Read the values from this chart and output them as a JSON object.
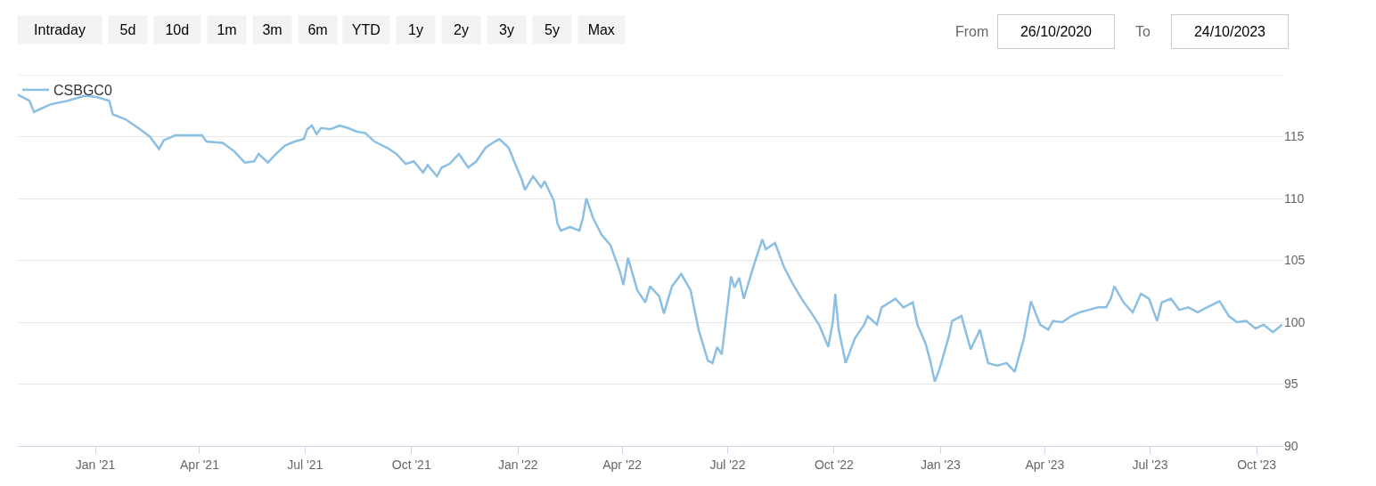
{
  "chart_data": {
    "type": "line",
    "annotations": [
      "Intraday",
      "5d",
      "10d",
      "1m",
      "3m",
      "6m",
      "YTD",
      "1y",
      "2y",
      "3y",
      "5y",
      "Max",
      "From",
      "26/10/2020",
      "To",
      "24/10/2023"
    ],
    "x": [
      "2020-10-26",
      "2020-11-05",
      "2020-11-09",
      "2020-11-23",
      "2020-12-08",
      "2020-12-23",
      "2021-01-02",
      "2021-01-13",
      "2021-01-16",
      "2021-01-27",
      "2021-02-07",
      "2021-02-17",
      "2021-02-25",
      "2021-03-01",
      "2021-03-11",
      "2021-03-21",
      "2021-04-03",
      "2021-04-07",
      "2021-04-21",
      "2021-05-01",
      "2021-05-10",
      "2021-05-18",
      "2021-05-22",
      "2021-05-30",
      "2021-06-06",
      "2021-06-14",
      "2021-06-22",
      "2021-06-30",
      "2021-07-03",
      "2021-07-07",
      "2021-07-11",
      "2021-07-15",
      "2021-07-23",
      "2021-07-31",
      "2021-08-07",
      "2021-08-15",
      "2021-08-22",
      "2021-08-30",
      "2021-09-10",
      "2021-09-18",
      "2021-09-26",
      "2021-10-03",
      "2021-10-11",
      "2021-10-15",
      "2021-10-23",
      "2021-10-27",
      "2021-11-03",
      "2021-11-11",
      "2021-11-19",
      "2021-11-26",
      "2021-12-04",
      "2021-12-12",
      "2021-12-16",
      "2021-12-24",
      "2021-12-30",
      "2022-01-04",
      "2022-01-07",
      "2022-01-14",
      "2022-01-21",
      "2022-01-24",
      "2022-02-01",
      "2022-02-04",
      "2022-02-07",
      "2022-02-15",
      "2022-02-23",
      "2022-02-26",
      "2022-03-01",
      "2022-03-07",
      "2022-03-14",
      "2022-03-22",
      "2022-03-30",
      "2022-04-02",
      "2022-04-06",
      "2022-04-14",
      "2022-04-21",
      "2022-04-25",
      "2022-05-03",
      "2022-05-07",
      "2022-05-14",
      "2022-05-22",
      "2022-05-30",
      "2022-06-06",
      "2022-06-14",
      "2022-06-18",
      "2022-06-22",
      "2022-06-26",
      "2022-07-04",
      "2022-07-07",
      "2022-07-11",
      "2022-07-15",
      "2022-07-23",
      "2022-07-31",
      "2022-08-03",
      "2022-08-11",
      "2022-08-19",
      "2022-08-27",
      "2022-09-03",
      "2022-09-11",
      "2022-09-18",
      "2022-09-26",
      "2022-09-30",
      "2022-10-02",
      "2022-10-05",
      "2022-10-11",
      "2022-10-19",
      "2022-10-27",
      "2022-10-30",
      "2022-11-07",
      "2022-11-11",
      "2022-11-23",
      "2022-11-30",
      "2022-12-08",
      "2022-12-12",
      "2022-12-19",
      "2022-12-23",
      "2022-12-27",
      "2022-12-31",
      "2023-01-08",
      "2023-01-11",
      "2023-01-19",
      "2023-01-27",
      "2023-02-04",
      "2023-02-11",
      "2023-02-19",
      "2023-02-27",
      "2023-03-06",
      "2023-03-14",
      "2023-03-20",
      "2023-03-28",
      "2023-04-04",
      "2023-04-08",
      "2023-04-16",
      "2023-04-24",
      "2023-05-01",
      "2023-05-09",
      "2023-05-17",
      "2023-05-24",
      "2023-05-28",
      "2023-05-31",
      "2023-06-08",
      "2023-06-16",
      "2023-06-23",
      "2023-06-30",
      "2023-07-07",
      "2023-07-11",
      "2023-07-19",
      "2023-07-26",
      "2023-08-03",
      "2023-08-11",
      "2023-08-19",
      "2023-08-30",
      "2023-09-07",
      "2023-09-14",
      "2023-09-22",
      "2023-09-30",
      "2023-10-07",
      "2023-10-15",
      "2023-10-23"
    ],
    "series": [
      {
        "name": "CSBGC0",
        "color": "#8bbfe3",
        "values": [
          118.4,
          117.9,
          117.0,
          117.6,
          117.9,
          118.3,
          118.2,
          117.9,
          116.8,
          116.4,
          115.7,
          115.0,
          114.0,
          114.7,
          115.1,
          115.1,
          115.1,
          114.6,
          114.5,
          113.8,
          112.9,
          113.0,
          113.6,
          112.9,
          113.6,
          114.3,
          114.6,
          114.8,
          115.6,
          115.9,
          115.2,
          115.7,
          115.6,
          115.9,
          115.7,
          115.4,
          115.3,
          114.6,
          114.1,
          113.6,
          112.8,
          113.0,
          112.1,
          112.7,
          111.8,
          112.5,
          112.8,
          113.6,
          112.5,
          113.0,
          114.1,
          114.6,
          114.8,
          114.1,
          112.7,
          111.6,
          110.7,
          111.8,
          110.9,
          111.4,
          109.8,
          108.0,
          107.4,
          107.7,
          107.4,
          108.4,
          110.0,
          108.4,
          107.1,
          106.2,
          104.1,
          103.0,
          105.2,
          102.6,
          101.6,
          102.9,
          102.1,
          100.7,
          102.9,
          103.9,
          102.6,
          99.4,
          96.9,
          96.7,
          98.0,
          97.4,
          103.7,
          102.8,
          103.6,
          101.9,
          104.4,
          106.7,
          105.9,
          106.4,
          104.4,
          103.0,
          101.9,
          100.8,
          99.8,
          98.0,
          100.1,
          102.3,
          99.4,
          96.7,
          98.7,
          99.8,
          100.5,
          99.8,
          101.2,
          101.9,
          101.2,
          101.6,
          99.8,
          98.3,
          96.9,
          95.2,
          96.2,
          98.8,
          100.1,
          100.5,
          97.8,
          99.4,
          96.7,
          96.5,
          96.7,
          96.0,
          98.7,
          101.7,
          99.8,
          99.4,
          100.1,
          100.0,
          100.5,
          100.8,
          101.0,
          101.2,
          101.2,
          101.9,
          102.9,
          101.6,
          100.8,
          102.3,
          101.9,
          100.1,
          101.6,
          101.9,
          101.0,
          101.2,
          100.8,
          101.2,
          101.7,
          100.5,
          100.0,
          100.1,
          99.5,
          99.8,
          99.2,
          99.8
        ]
      }
    ],
    "xlim": [
      "2020-10-26",
      "2023-10-24"
    ],
    "xticks": [
      {
        "value": "2021-01-01",
        "label": "Jan '21"
      },
      {
        "value": "2021-04-01",
        "label": "Apr '21"
      },
      {
        "value": "2021-07-01",
        "label": "Jul '21"
      },
      {
        "value": "2021-10-01",
        "label": "Oct '21"
      },
      {
        "value": "2022-01-01",
        "label": "Jan '22"
      },
      {
        "value": "2022-04-01",
        "label": "Apr '22"
      },
      {
        "value": "2022-07-01",
        "label": "Jul '22"
      },
      {
        "value": "2022-10-01",
        "label": "Oct '22"
      },
      {
        "value": "2023-01-01",
        "label": "Jan '23"
      },
      {
        "value": "2023-04-01",
        "label": "Apr '23"
      },
      {
        "value": "2023-07-01",
        "label": "Jul '23"
      },
      {
        "value": "2023-10-01",
        "label": "Oct '23"
      }
    ],
    "ylim": [
      90,
      120
    ],
    "yticks": [
      90,
      95,
      100,
      105,
      110,
      115
    ],
    "grid": "y",
    "legend": "top left",
    "marker": "none",
    "line_style": "solid"
  }
}
